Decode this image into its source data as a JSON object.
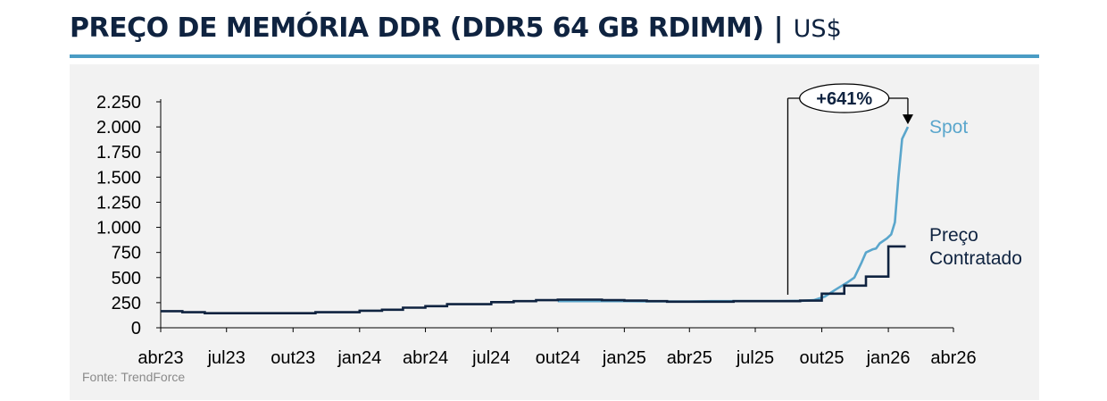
{
  "header": {
    "title": "PREÇO DE MEMÓRIA DDR (DDR5 64 GB RDIMM)",
    "separator": "|",
    "unit": "US$"
  },
  "colors": {
    "title": "#0f2340",
    "rule": "#4a9cc4",
    "panel": "#f2f2f2",
    "spot": "#5aa6cc",
    "contract": "#0f2340"
  },
  "source": "Fonte: TrendForce",
  "chart_data": {
    "type": "line",
    "title": "PREÇO DE MEMÓRIA DDR (DDR5 64 GB RDIMM)",
    "ylim": [
      0,
      2250
    ],
    "yticks": [
      0,
      250,
      500,
      750,
      1000,
      1250,
      1500,
      1750,
      2000,
      2250
    ],
    "ytick_labels": [
      "0",
      "250",
      "500",
      "750",
      "1.000",
      "1.250",
      "1.500",
      "1.750",
      "2.000",
      "2.250"
    ],
    "xlim": [
      "2023-04",
      "2026-04"
    ],
    "xticks": [
      "2023-04",
      "2023-07",
      "2023-10",
      "2024-01",
      "2024-04",
      "2024-07",
      "2024-10",
      "2025-01",
      "2025-04",
      "2025-07",
      "2025-10",
      "2026-01",
      "2026-04"
    ],
    "xtick_labels": [
      "abr23",
      "jul23",
      "out23",
      "jan24",
      "abr24",
      "jul24",
      "out24",
      "jan25",
      "abr25",
      "jul25",
      "out25",
      "jan26",
      "abr26"
    ],
    "series": [
      {
        "name": "Spot",
        "color": "#5aa6cc",
        "points": [
          [
            "2024-10-01",
            265
          ],
          [
            "2024-11-01",
            265
          ],
          [
            "2024-12-01",
            265
          ],
          [
            "2025-01-01",
            265
          ],
          [
            "2025-02-01",
            262
          ],
          [
            "2025-03-01",
            262
          ],
          [
            "2025-04-01",
            262
          ],
          [
            "2025-05-01",
            265
          ],
          [
            "2025-06-01",
            265
          ],
          [
            "2025-07-01",
            265
          ],
          [
            "2025-08-01",
            265
          ],
          [
            "2025-09-01",
            268
          ],
          [
            "2025-09-20",
            275
          ],
          [
            "2025-10-05",
            310
          ],
          [
            "2025-10-20",
            380
          ],
          [
            "2025-11-05",
            450
          ],
          [
            "2025-11-15",
            500
          ],
          [
            "2025-11-25",
            650
          ],
          [
            "2025-12-01",
            750
          ],
          [
            "2025-12-10",
            780
          ],
          [
            "2025-12-15",
            790
          ],
          [
            "2025-12-20",
            840
          ],
          [
            "2025-12-30",
            890
          ],
          [
            "2026-01-05",
            930
          ],
          [
            "2026-01-10",
            1050
          ],
          [
            "2026-01-15",
            1500
          ],
          [
            "2026-01-20",
            1880
          ],
          [
            "2026-01-28",
            2000
          ]
        ]
      },
      {
        "name": "Preço Contratado",
        "color": "#0f2340",
        "steps": [
          [
            "2023-04-01",
            165
          ],
          [
            "2023-05-01",
            155
          ],
          [
            "2023-06-01",
            145
          ],
          [
            "2023-10-01",
            145
          ],
          [
            "2023-11-01",
            155
          ],
          [
            "2024-01-01",
            170
          ],
          [
            "2024-02-01",
            180
          ],
          [
            "2024-03-01",
            200
          ],
          [
            "2024-04-01",
            215
          ],
          [
            "2024-05-01",
            235
          ],
          [
            "2024-07-01",
            255
          ],
          [
            "2024-08-01",
            265
          ],
          [
            "2024-09-01",
            275
          ],
          [
            "2024-10-01",
            280
          ],
          [
            "2024-12-01",
            275
          ],
          [
            "2025-01-01",
            270
          ],
          [
            "2025-02-01",
            265
          ],
          [
            "2025-03-01",
            260
          ],
          [
            "2025-06-01",
            265
          ],
          [
            "2025-08-01",
            265
          ],
          [
            "2025-09-01",
            270
          ],
          [
            "2025-10-01",
            340
          ],
          [
            "2025-11-01",
            420
          ],
          [
            "2025-12-01",
            510
          ],
          [
            "2026-01-01",
            810
          ],
          [
            "2026-01-25",
            810
          ]
        ]
      }
    ],
    "annotations": [
      {
        "text": "+641%",
        "from": "2025-08-15",
        "to": "2026-01-28",
        "kind": "bracket-arrow"
      }
    ],
    "legend_placement": "right-inline",
    "grid": false
  }
}
